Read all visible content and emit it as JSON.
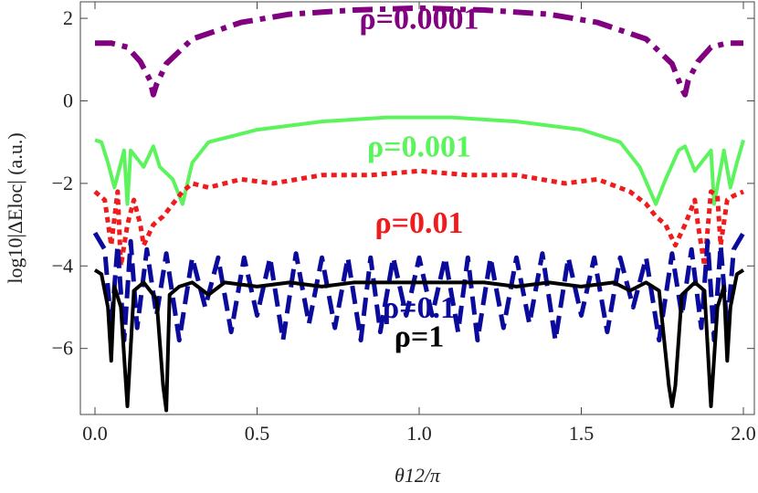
{
  "chart_data": {
    "type": "line",
    "xlabel": "θ12/π",
    "ylabel": "log10|ΔEloc| (a.u.)",
    "xlim": [
      0.0,
      2.0
    ],
    "ylim": [
      -7.6,
      2.4
    ],
    "xticks": [
      "0.0",
      "0.5",
      "1.0",
      "1.5",
      "2.0"
    ],
    "xtick_values": [
      0.0,
      0.5,
      1.0,
      1.5,
      2.0
    ],
    "yticks": [
      "2",
      "0",
      "−2",
      "−4",
      "−6"
    ],
    "ytick_values": [
      2,
      0,
      -2,
      -4,
      -6
    ],
    "grid": false,
    "series": [
      {
        "name": "ρ=0.0001",
        "color": "#800080",
        "style": "dashdot",
        "x": [
          0.0,
          0.05,
          0.1,
          0.14,
          0.17,
          0.18,
          0.19,
          0.22,
          0.3,
          0.45,
          0.6,
          0.8,
          1.0,
          1.2,
          1.4,
          1.55,
          1.7,
          1.78,
          1.81,
          1.82,
          1.83,
          1.86,
          1.9,
          1.95,
          2.0
        ],
        "y": [
          1.4,
          1.4,
          1.3,
          0.95,
          0.5,
          0.15,
          0.4,
          0.9,
          1.5,
          1.9,
          2.1,
          2.2,
          2.25,
          2.2,
          2.1,
          1.9,
          1.5,
          0.9,
          0.3,
          0.15,
          0.5,
          0.95,
          1.3,
          1.4,
          1.4
        ]
      },
      {
        "name": "ρ=0.001",
        "color": "#5cf45c",
        "style": "solid",
        "x": [
          0.0,
          0.02,
          0.04,
          0.06,
          0.09,
          0.1,
          0.11,
          0.15,
          0.18,
          0.2,
          0.24,
          0.27,
          0.3,
          0.35,
          0.5,
          0.7,
          0.9,
          1.0,
          1.1,
          1.3,
          1.5,
          1.62,
          1.68,
          1.73,
          1.76,
          1.8,
          1.82,
          1.85,
          1.9,
          1.91,
          1.94,
          1.96,
          1.98,
          2.0
        ],
        "y": [
          -0.95,
          -1.0,
          -1.5,
          -2.1,
          -1.2,
          -2.5,
          -1.2,
          -1.6,
          -1.1,
          -1.6,
          -1.9,
          -2.5,
          -1.5,
          -1.0,
          -0.7,
          -0.5,
          -0.4,
          -0.4,
          -0.4,
          -0.5,
          -0.7,
          -1.0,
          -1.6,
          -2.5,
          -1.9,
          -1.2,
          -1.1,
          -1.7,
          -1.2,
          -2.5,
          -1.2,
          -2.1,
          -1.5,
          -0.95
        ]
      },
      {
        "name": "ρ=0.01",
        "color": "#ee1c1c",
        "style": "dotted",
        "x": [
          0.0,
          0.03,
          0.05,
          0.07,
          0.08,
          0.1,
          0.12,
          0.14,
          0.15,
          0.18,
          0.21,
          0.24,
          0.27,
          0.3,
          0.35,
          0.45,
          0.55,
          0.7,
          0.85,
          1.0,
          1.15,
          1.3,
          1.45,
          1.55,
          1.65,
          1.7,
          1.73,
          1.76,
          1.79,
          1.82,
          1.85,
          1.86,
          1.88,
          1.9,
          1.92,
          1.93,
          1.95,
          1.97,
          2.0
        ],
        "y": [
          -2.2,
          -2.4,
          -3.5,
          -2.2,
          -4.0,
          -3.0,
          -2.4,
          -3.0,
          -3.5,
          -3.0,
          -2.8,
          -2.5,
          -2.2,
          -2.0,
          -2.1,
          -1.9,
          -2.0,
          -1.8,
          -1.8,
          -1.7,
          -1.8,
          -1.8,
          -2.0,
          -1.9,
          -2.2,
          -2.5,
          -2.8,
          -3.0,
          -3.5,
          -3.0,
          -2.4,
          -3.0,
          -4.0,
          -2.2,
          -2.3,
          -3.5,
          -2.4,
          -2.3,
          -2.2
        ]
      },
      {
        "name": "ρ=0.1",
        "color": "#0a0a9c",
        "style": "dashed",
        "x": [
          0.0,
          0.03,
          0.05,
          0.07,
          0.09,
          0.11,
          0.13,
          0.16,
          0.19,
          0.22,
          0.26,
          0.3,
          0.34,
          0.38,
          0.42,
          0.46,
          0.5,
          0.54,
          0.58,
          0.62,
          0.66,
          0.7,
          0.74,
          0.78,
          0.82,
          0.85,
          0.88,
          0.92,
          0.96,
          1.0,
          1.04,
          1.08,
          1.12,
          1.15,
          1.18,
          1.22,
          1.26,
          1.3,
          1.34,
          1.38,
          1.42,
          1.46,
          1.5,
          1.54,
          1.58,
          1.62,
          1.66,
          1.7,
          1.74,
          1.78,
          1.81,
          1.84,
          1.87,
          1.89,
          1.91,
          1.93,
          1.95,
          1.97,
          2.0
        ],
        "y": [
          -3.2,
          -3.6,
          -5.5,
          -3.5,
          -5.8,
          -3.4,
          -5.5,
          -3.6,
          -5.2,
          -3.7,
          -5.8,
          -3.8,
          -5.0,
          -3.8,
          -5.6,
          -3.8,
          -5.2,
          -3.8,
          -5.8,
          -3.7,
          -5.4,
          -3.8,
          -5.5,
          -3.8,
          -5.8,
          -3.8,
          -5.6,
          -3.8,
          -5.2,
          -3.8,
          -5.2,
          -3.8,
          -5.6,
          -3.8,
          -5.8,
          -3.8,
          -5.5,
          -3.8,
          -5.4,
          -3.7,
          -5.8,
          -3.8,
          -5.2,
          -3.8,
          -5.6,
          -3.8,
          -5.0,
          -3.8,
          -5.8,
          -3.7,
          -5.2,
          -3.6,
          -5.5,
          -3.4,
          -5.8,
          -3.5,
          -5.5,
          -3.6,
          -3.2
        ]
      },
      {
        "name": "ρ=1",
        "color": "#000000",
        "style": "solid",
        "x": [
          0.0,
          0.02,
          0.04,
          0.05,
          0.06,
          0.08,
          0.1,
          0.12,
          0.15,
          0.19,
          0.21,
          0.22,
          0.23,
          0.26,
          0.3,
          0.35,
          0.4,
          0.5,
          0.6,
          0.7,
          0.8,
          0.9,
          1.0,
          1.1,
          1.2,
          1.3,
          1.4,
          1.5,
          1.6,
          1.65,
          1.7,
          1.74,
          1.77,
          1.78,
          1.79,
          1.81,
          1.85,
          1.88,
          1.9,
          1.92,
          1.94,
          1.95,
          1.96,
          1.98,
          2.0
        ],
        "y": [
          -4.1,
          -4.2,
          -5.0,
          -6.3,
          -4.5,
          -5.0,
          -7.4,
          -4.6,
          -4.4,
          -4.8,
          -6.9,
          -7.5,
          -4.7,
          -4.5,
          -4.4,
          -4.7,
          -4.4,
          -4.5,
          -4.4,
          -4.5,
          -4.4,
          -4.4,
          -4.4,
          -4.4,
          -4.4,
          -4.5,
          -4.4,
          -4.5,
          -4.4,
          -4.6,
          -4.4,
          -4.6,
          -6.9,
          -7.4,
          -6.9,
          -4.7,
          -4.4,
          -4.6,
          -7.4,
          -5.0,
          -4.5,
          -6.3,
          -5.0,
          -4.2,
          -4.1
        ]
      }
    ],
    "annotations": [
      {
        "text": "ρ=0.0001",
        "x": 1.0,
        "y": 1.75,
        "color": "#800080"
      },
      {
        "text": "ρ=0.001",
        "x": 1.0,
        "y": -1.35,
        "color": "#5cf45c"
      },
      {
        "text": "ρ=0.01",
        "x": 1.0,
        "y": -3.2,
        "color": "#ee1c1c"
      },
      {
        "text": "ρ=0.1",
        "x": 1.0,
        "y": -5.25,
        "color": "#0a0a9c"
      },
      {
        "text": "ρ=1",
        "x": 1.0,
        "y": -5.95,
        "color": "#000000"
      }
    ]
  }
}
